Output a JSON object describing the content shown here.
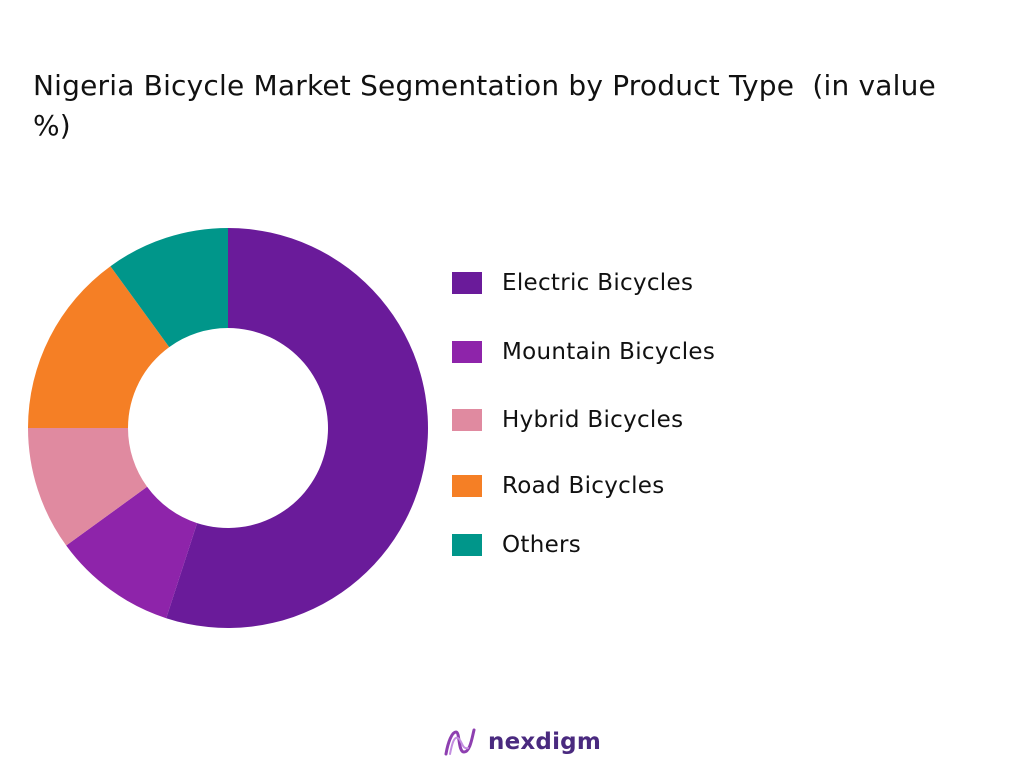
{
  "chart_data": {
    "type": "pie",
    "title": "Nigeria Bicycle Market Segmentation by Product Type  (in value %)",
    "series": [
      {
        "name": "Electric Bicycles",
        "value": 55,
        "color": "#6a1b9a"
      },
      {
        "name": "Mountain Bicycles",
        "value": 10,
        "color": "#8e24aa"
      },
      {
        "name": "Hybrid Bicycles",
        "value": 10,
        "color": "#e08aa0"
      },
      {
        "name": "Road Bicycles",
        "value": 15,
        "color": "#f57f25"
      },
      {
        "name": "Others",
        "value": 10,
        "color": "#00968a"
      }
    ],
    "legend_position": "right"
  },
  "brand": {
    "name": "nexdigm",
    "logo_icon": "nexdigm-logo-icon"
  }
}
